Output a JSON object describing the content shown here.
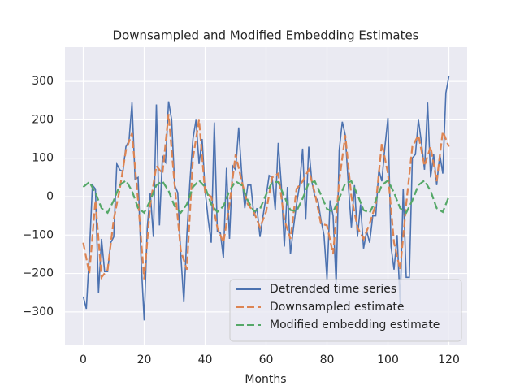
{
  "chart_data": {
    "type": "line",
    "title": "Downsampled and Modified Embedding Estimates",
    "xlabel": "Months",
    "xlim": [
      -6,
      126
    ],
    "ylim": [
      -387,
      389
    ],
    "xticks": [
      0,
      20,
      40,
      60,
      80,
      100,
      120
    ],
    "yticks": [
      {
        "value": -300,
        "label": "−300"
      },
      {
        "value": -200,
        "label": "−200"
      },
      {
        "value": -100,
        "label": "−100"
      },
      0,
      100,
      200,
      300
    ],
    "grid": true,
    "legend": "lower right",
    "series": [
      {
        "name": "Detrended time series",
        "color": "#4c72b0",
        "dash": "solid",
        "x": [
          0,
          1,
          2,
          3,
          4,
          5,
          6,
          7,
          8,
          9,
          10,
          11,
          12,
          13,
          14,
          15,
          16,
          17,
          18,
          19,
          20,
          21,
          22,
          23,
          24,
          25,
          26,
          27,
          28,
          29,
          30,
          31,
          32,
          33,
          34,
          35,
          36,
          37,
          38,
          39,
          40,
          41,
          42,
          43,
          44,
          45,
          46,
          47,
          48,
          49,
          50,
          51,
          52,
          53,
          54,
          55,
          56,
          57,
          58,
          59,
          60,
          61,
          62,
          63,
          64,
          65,
          66,
          67,
          68,
          69,
          70,
          71,
          72,
          73,
          74,
          75,
          76,
          77,
          78,
          79,
          80,
          81,
          82,
          83,
          84,
          85,
          86,
          87,
          88,
          89,
          90,
          91,
          92,
          93,
          94,
          95,
          96,
          97,
          98,
          99,
          100,
          101,
          102,
          103,
          104,
          105,
          106,
          107,
          108,
          109,
          110,
          111,
          112,
          113,
          114,
          115,
          116,
          117,
          118,
          119,
          120
        ],
        "values": [
          -260,
          -292,
          -150,
          30,
          20,
          -250,
          -110,
          -195,
          -195,
          -120,
          -105,
          85,
          70,
          65,
          130,
          145,
          245,
          45,
          50,
          -170,
          -322,
          -80,
          10,
          -105,
          240,
          -75,
          105,
          90,
          248,
          200,
          30,
          10,
          -150,
          -275,
          -100,
          40,
          150,
          200,
          85,
          150,
          15,
          -60,
          -120,
          193,
          -90,
          -95,
          -160,
          75,
          -110,
          80,
          70,
          180,
          60,
          -30,
          30,
          30,
          -50,
          -30,
          -105,
          -50,
          0,
          55,
          50,
          -35,
          140,
          30,
          -130,
          25,
          -150,
          -80,
          -20,
          30,
          125,
          -60,
          130,
          40,
          0,
          -10,
          -60,
          -100,
          -215,
          -10,
          -50,
          -230,
          120,
          195,
          160,
          30,
          -80,
          30,
          -105,
          -20,
          -135,
          -90,
          -120,
          -50,
          -50,
          70,
          40,
          130,
          205,
          -130,
          -190,
          -100,
          -280,
          20,
          -210,
          -210,
          100,
          110,
          200,
          140,
          70,
          245,
          50,
          110,
          30,
          110,
          60,
          270,
          313
        ]
      },
      {
        "name": "Downsampled estimate",
        "color": "#dd8452",
        "dash": "dashed",
        "x": [
          0,
          2,
          4,
          6,
          8,
          10,
          12,
          14,
          16,
          18,
          20,
          22,
          24,
          26,
          28,
          30,
          32,
          34,
          36,
          38,
          40,
          42,
          44,
          46,
          48,
          50,
          52,
          54,
          56,
          58,
          60,
          62,
          64,
          66,
          68,
          70,
          72,
          74,
          76,
          78,
          80,
          82,
          84,
          86,
          88,
          90,
          92,
          94,
          96,
          98,
          100,
          102,
          104,
          106,
          108,
          110,
          112,
          114,
          116,
          118,
          120
        ],
        "values": [
          -120,
          -200,
          -10,
          -210,
          -190,
          -60,
          20,
          120,
          165,
          -10,
          -215,
          -20,
          80,
          60,
          215,
          30,
          -140,
          -190,
          100,
          200,
          10,
          0,
          -80,
          -120,
          -20,
          110,
          40,
          -20,
          -40,
          -80,
          -40,
          50,
          60,
          -60,
          -110,
          20,
          40,
          70,
          10,
          -70,
          -75,
          -150,
          40,
          160,
          0,
          -80,
          -110,
          -70,
          -20,
          140,
          60,
          -120,
          -190,
          -20,
          130,
          160,
          80,
          130,
          40,
          170,
          130
        ]
      },
      {
        "name": "Modified embedding estimate",
        "color": "#55a868",
        "dash": "dashed",
        "x": [
          0,
          2,
          4,
          6,
          8,
          10,
          12,
          14,
          16,
          18,
          20,
          22,
          24,
          26,
          28,
          30,
          32,
          34,
          36,
          38,
          40,
          42,
          44,
          46,
          48,
          50,
          52,
          54,
          56,
          58,
          60,
          62,
          64,
          66,
          68,
          70,
          72,
          74,
          76,
          78,
          80,
          82,
          84,
          86,
          88,
          90,
          92,
          94,
          96,
          98,
          100,
          102,
          104,
          106,
          108,
          110,
          112,
          114,
          116,
          118,
          120
        ],
        "values": [
          25,
          38,
          10,
          -30,
          -42,
          -10,
          30,
          42,
          15,
          -30,
          -42,
          -10,
          30,
          40,
          15,
          -25,
          -42,
          -20,
          25,
          42,
          25,
          -20,
          -40,
          -25,
          15,
          40,
          30,
          -10,
          -38,
          -32,
          5,
          38,
          38,
          0,
          -35,
          -38,
          -5,
          35,
          40,
          5,
          -32,
          -40,
          -5,
          35,
          40,
          5,
          -35,
          -42,
          -10,
          30,
          42,
          10,
          -30,
          -42,
          -10,
          30,
          42,
          15,
          -30,
          -40,
          0
        ]
      }
    ]
  }
}
